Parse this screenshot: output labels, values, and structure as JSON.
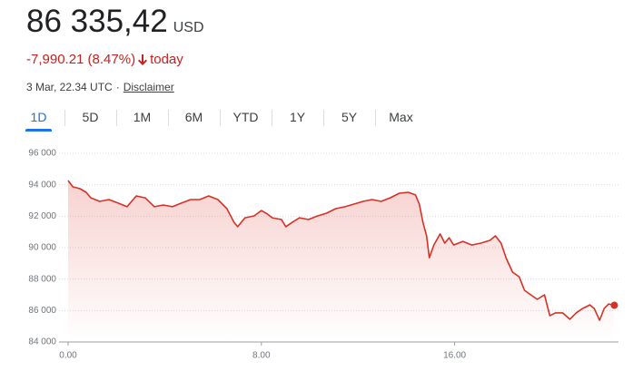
{
  "quote": {
    "price": "86 335,42",
    "currency": "USD",
    "change": "-7,990.21 (8.47%)",
    "period": "today",
    "timestamp": "3 Mar, 22.34 UTC",
    "separator": "·",
    "disclaimer": "Disclaimer",
    "tabs": [
      "1D",
      "5D",
      "1M",
      "6M",
      "YTD",
      "1Y",
      "5Y",
      "Max"
    ],
    "selected_tab": 0
  },
  "chart_data": {
    "type": "line",
    "x": [
      0,
      0.19,
      0.49,
      0.75,
      0.94,
      1.31,
      1.69,
      2.07,
      2.44,
      2.82,
      3.19,
      3.57,
      3.94,
      4.32,
      4.69,
      5.07,
      5.45,
      5.82,
      6.2,
      6.57,
      6.87,
      7.02,
      7.32,
      7.7,
      8.0,
      8.26,
      8.45,
      8.83,
      9.01,
      9.28,
      9.58,
      9.95,
      10.33,
      10.7,
      11.08,
      11.46,
      11.83,
      12.21,
      12.58,
      12.96,
      13.33,
      13.71,
      14.08,
      14.38,
      14.54,
      14.69,
      14.84,
      14.95,
      15.14,
      15.4,
      15.59,
      15.77,
      15.96,
      16.34,
      16.71,
      17.09,
      17.46,
      17.69,
      17.92,
      18.14,
      18.4,
      18.67,
      18.89,
      19.15,
      19.42,
      19.72,
      19.94,
      20.17,
      20.47,
      20.77,
      21.03,
      21.3,
      21.6,
      21.78,
      22.0,
      22.19,
      22.38,
      22.61
    ],
    "series": [
      {
        "color": "#d93025",
        "values": [
          94270,
          93870,
          93750,
          93520,
          93170,
          92940,
          93060,
          92830,
          92600,
          93290,
          93170,
          92600,
          92710,
          92600,
          92830,
          93060,
          93060,
          93290,
          93060,
          92480,
          91610,
          91330,
          91900,
          92020,
          92360,
          92130,
          91900,
          91790,
          91330,
          91610,
          91900,
          91790,
          92020,
          92190,
          92480,
          92600,
          92770,
          92940,
          93060,
          92940,
          93170,
          93460,
          93520,
          93350,
          92770,
          91610,
          90750,
          89360,
          90170,
          90870,
          90290,
          90630,
          90170,
          90400,
          90170,
          90290,
          90460,
          90750,
          90290,
          89310,
          88440,
          88150,
          87290,
          87000,
          86710,
          87000,
          85670,
          85850,
          85850,
          85440,
          85850,
          86130,
          86360,
          86130,
          85380,
          86130,
          86420,
          86335.42
        ]
      }
    ],
    "xlim": [
      0,
      22.67
    ],
    "xticks": [
      {
        "value": 0,
        "label": "0.00"
      },
      {
        "value": 8,
        "label": "8.00"
      },
      {
        "value": 16,
        "label": "16.00"
      }
    ],
    "ylim": [
      84000,
      96000
    ],
    "yticks": [
      {
        "value": 84000,
        "label": "84 000"
      },
      {
        "value": 86000,
        "label": "86 000"
      },
      {
        "value": 88000,
        "label": "88 000"
      },
      {
        "value": 90000,
        "label": "90 000"
      },
      {
        "value": 92000,
        "label": "92 000"
      },
      {
        "value": 94000,
        "label": "94 000"
      },
      {
        "value": 96000,
        "label": "96 000"
      }
    ],
    "grid": true
  }
}
